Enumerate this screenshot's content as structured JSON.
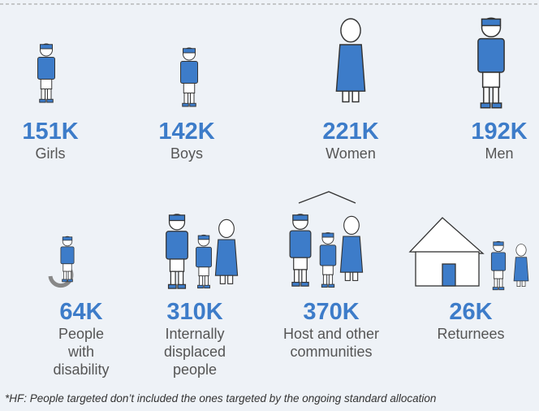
{
  "items": [
    {
      "value": "151K",
      "label": "Girls"
    },
    {
      "value": "142K",
      "label": "Boys"
    },
    {
      "value": "221K",
      "label": "Women"
    },
    {
      "value": "192K",
      "label": "Men"
    },
    {
      "value": "64K",
      "label": "People with disability"
    },
    {
      "value": "310K",
      "label": "Internally displaced people"
    },
    {
      "value": "370K",
      "label": "Host and other communities"
    },
    {
      "value": "26K",
      "label": "Returnees"
    }
  ],
  "footnote": "*HF: People targeted don’t included the ones targeted by the ongoing standard allocation"
}
